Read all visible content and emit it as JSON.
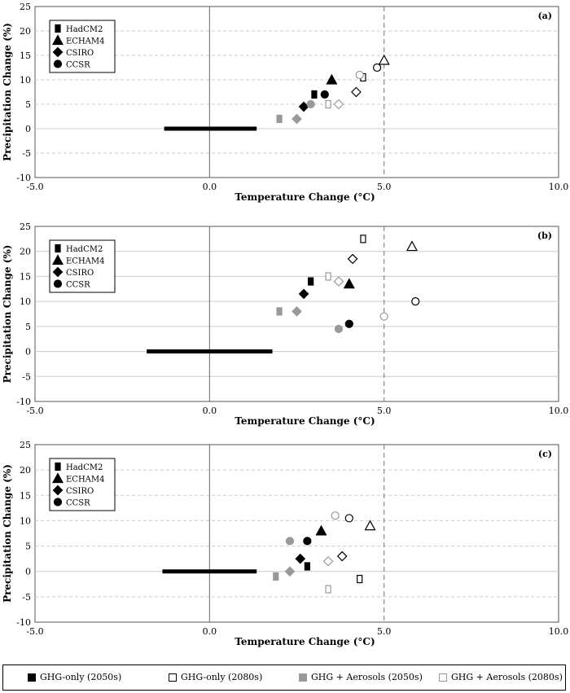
{
  "colors": {
    "ghg_only": "#000000",
    "aerosol": "#999999",
    "grid": "#cccccc",
    "dashed_ref": "#888888"
  },
  "chart_data": [
    {
      "type": "scatter",
      "panel_label": "(a)",
      "xlabel": "Temperature Change (°C)",
      "ylabel": "Precipitation Change (%)",
      "xlim": [
        -5,
        10
      ],
      "ylim": [
        -10,
        25
      ],
      "x_ticks": [
        "-5.0",
        "0.0",
        "5.0",
        "10.0"
      ],
      "y_ticks": [
        "25",
        "20",
        "15",
        "10",
        "5",
        "0",
        "-5",
        "-10"
      ],
      "grid": "horizontal dashed",
      "reference_line_x": 5.0,
      "natural_variability_bar": {
        "x_from": -1.3,
        "x_to": 1.35,
        "y": 0
      },
      "legend_models": [
        "HadCM2",
        "ECHAM4",
        "CSIRO",
        "CCSR"
      ],
      "points": [
        {
          "model": "HadCM2",
          "scenario": "GHG-only (2050s)",
          "x": 3.0,
          "y": 7.0
        },
        {
          "model": "ECHAM4",
          "scenario": "GHG-only (2050s)",
          "x": 3.5,
          "y": 10.0
        },
        {
          "model": "CSIRO",
          "scenario": "GHG-only (2050s)",
          "x": 2.7,
          "y": 4.5
        },
        {
          "model": "CCSR",
          "scenario": "GHG-only (2050s)",
          "x": 3.3,
          "y": 7.0
        },
        {
          "model": "HadCM2",
          "scenario": "GHG-only (2080s)",
          "x": 4.4,
          "y": 10.5
        },
        {
          "model": "ECHAM4",
          "scenario": "GHG-only (2080s)",
          "x": 5.0,
          "y": 14.0
        },
        {
          "model": "CSIRO",
          "scenario": "GHG-only (2080s)",
          "x": 4.2,
          "y": 7.5
        },
        {
          "model": "CCSR",
          "scenario": "GHG-only (2080s)",
          "x": 4.8,
          "y": 12.5
        },
        {
          "model": "HadCM2",
          "scenario": "GHG + Aerosols (2050s)",
          "x": 2.0,
          "y": 2.0
        },
        {
          "model": "CSIRO",
          "scenario": "GHG + Aerosols (2050s)",
          "x": 2.5,
          "y": 2.0
        },
        {
          "model": "CCSR",
          "scenario": "GHG + Aerosols (2050s)",
          "x": 2.9,
          "y": 5.0
        },
        {
          "model": "HadCM2",
          "scenario": "GHG + Aerosols (2080s)",
          "x": 3.4,
          "y": 5.0
        },
        {
          "model": "CSIRO",
          "scenario": "GHG + Aerosols (2080s)",
          "x": 3.7,
          "y": 5.0
        },
        {
          "model": "CCSR",
          "scenario": "GHG + Aerosols (2080s)",
          "x": 4.3,
          "y": 11.0
        }
      ]
    },
    {
      "type": "scatter",
      "panel_label": "(b)",
      "xlabel": "Temperature Change (°C)",
      "ylabel": "Precipitation Change (%)",
      "xlim": [
        -5,
        10
      ],
      "ylim": [
        -10,
        25
      ],
      "x_ticks": [
        "-5.0",
        "0.0",
        "5.0",
        "10.0"
      ],
      "y_ticks": [
        "25",
        "20",
        "15",
        "10",
        "5",
        "0",
        "-5",
        "-10"
      ],
      "grid": "horizontal",
      "reference_line_x": 5.0,
      "natural_variability_bar": {
        "x_from": -1.8,
        "x_to": 1.8,
        "y": 0
      },
      "legend_models": [
        "HadCM2",
        "ECHAM4",
        "CSIRO",
        "CCSR"
      ],
      "points": [
        {
          "model": "HadCM2",
          "scenario": "GHG-only (2050s)",
          "x": 2.9,
          "y": 14.0
        },
        {
          "model": "ECHAM4",
          "scenario": "GHG-only (2050s)",
          "x": 4.0,
          "y": 13.5
        },
        {
          "model": "CSIRO",
          "scenario": "GHG-only (2050s)",
          "x": 2.7,
          "y": 11.5
        },
        {
          "model": "CCSR",
          "scenario": "GHG-only (2050s)",
          "x": 4.0,
          "y": 5.5
        },
        {
          "model": "HadCM2",
          "scenario": "GHG-only (2080s)",
          "x": 4.4,
          "y": 22.5
        },
        {
          "model": "ECHAM4",
          "scenario": "GHG-only (2080s)",
          "x": 5.8,
          "y": 21.0
        },
        {
          "model": "CSIRO",
          "scenario": "GHG-only (2080s)",
          "x": 4.1,
          "y": 18.5
        },
        {
          "model": "CCSR",
          "scenario": "GHG-only (2080s)",
          "x": 5.9,
          "y": 10.0
        },
        {
          "model": "HadCM2",
          "scenario": "GHG + Aerosols (2050s)",
          "x": 2.0,
          "y": 8.0
        },
        {
          "model": "CSIRO",
          "scenario": "GHG + Aerosols (2050s)",
          "x": 2.5,
          "y": 8.0
        },
        {
          "model": "CCSR",
          "scenario": "GHG + Aerosols (2050s)",
          "x": 3.7,
          "y": 4.5
        },
        {
          "model": "HadCM2",
          "scenario": "GHG + Aerosols (2080s)",
          "x": 3.4,
          "y": 15.0
        },
        {
          "model": "CSIRO",
          "scenario": "GHG + Aerosols (2080s)",
          "x": 3.7,
          "y": 14.0
        },
        {
          "model": "CCSR",
          "scenario": "GHG + Aerosols (2080s)",
          "x": 5.0,
          "y": 7.0
        }
      ]
    },
    {
      "type": "scatter",
      "panel_label": "(c)",
      "xlabel": "Temperature Change (°C)",
      "ylabel": "Precipitation Change (%)",
      "xlim": [
        -5,
        10
      ],
      "ylim": [
        -10,
        25
      ],
      "x_ticks": [
        "-5.0",
        "0.0",
        "5.0",
        "10.0"
      ],
      "y_ticks": [
        "25",
        "20",
        "15",
        "10",
        "5",
        "0",
        "-5",
        "-10"
      ],
      "grid": "horizontal dashed",
      "reference_line_x": 5.0,
      "natural_variability_bar": {
        "x_from": -1.35,
        "x_to": 1.35,
        "y": 0
      },
      "legend_models": [
        "HadCM2",
        "ECHAM4",
        "CSIRO",
        "CCSR"
      ],
      "points": [
        {
          "model": "HadCM2",
          "scenario": "GHG-only (2050s)",
          "x": 2.8,
          "y": 1.0
        },
        {
          "model": "ECHAM4",
          "scenario": "GHG-only (2050s)",
          "x": 3.2,
          "y": 8.0
        },
        {
          "model": "CSIRO",
          "scenario": "GHG-only (2050s)",
          "x": 2.6,
          "y": 2.5
        },
        {
          "model": "CCSR",
          "scenario": "GHG-only (2050s)",
          "x": 2.8,
          "y": 6.0
        },
        {
          "model": "HadCM2",
          "scenario": "GHG-only (2080s)",
          "x": 4.3,
          "y": -1.5
        },
        {
          "model": "ECHAM4",
          "scenario": "GHG-only (2080s)",
          "x": 4.6,
          "y": 9.0
        },
        {
          "model": "CSIRO",
          "scenario": "GHG-only (2080s)",
          "x": 3.8,
          "y": 3.0
        },
        {
          "model": "CCSR",
          "scenario": "GHG-only (2080s)",
          "x": 4.0,
          "y": 10.5
        },
        {
          "model": "HadCM2",
          "scenario": "GHG + Aerosols (2050s)",
          "x": 1.9,
          "y": -1.0
        },
        {
          "model": "CSIRO",
          "scenario": "GHG + Aerosols (2050s)",
          "x": 2.3,
          "y": 0.0
        },
        {
          "model": "CCSR",
          "scenario": "GHG + Aerosols (2050s)",
          "x": 2.3,
          "y": 6.0
        },
        {
          "model": "HadCM2",
          "scenario": "GHG + Aerosols (2080s)",
          "x": 3.4,
          "y": -3.5
        },
        {
          "model": "CSIRO",
          "scenario": "GHG + Aerosols (2080s)",
          "x": 3.4,
          "y": 2.0
        },
        {
          "model": "CCSR",
          "scenario": "GHG + Aerosols (2080s)",
          "x": 3.6,
          "y": 11.0
        }
      ]
    }
  ],
  "legend_scenarios": [
    {
      "label": "GHG-only (2050s)",
      "style": "filled-black"
    },
    {
      "label": "GHG-only (2080s)",
      "style": "open-black"
    },
    {
      "label": "GHG + Aerosols (2050s)",
      "style": "filled-grey"
    },
    {
      "label": "GHG + Aerosols (2080s)",
      "style": "open-grey"
    }
  ]
}
